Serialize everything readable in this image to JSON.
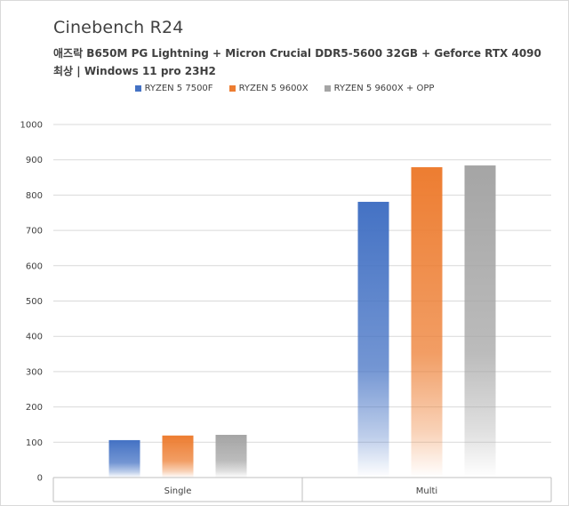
{
  "chart_data": {
    "type": "bar",
    "title": "Cinebench R24",
    "subtitle_lines": [
      "애즈락 B650M PG Lightning + Micron Crucial DDR5-5600 32GB + Geforce RTX 4090",
      "최상 | Windows 11 pro 23H2"
    ],
    "categories": [
      "Single",
      "Multi"
    ],
    "series": [
      {
        "name": "RYZEN 5 7500F",
        "color": "#4472c4",
        "values": [
          106,
          781
        ]
      },
      {
        "name": "RYZEN 5 9600X",
        "color": "#ed7d31",
        "values": [
          119,
          879
        ]
      },
      {
        "name": "RYZEN 5 9600X + OPP",
        "color": "#a5a5a5",
        "values": [
          121,
          884
        ]
      }
    ],
    "yticks": [
      "0",
      "100",
      "200",
      "300",
      "400",
      "500",
      "600",
      "700",
      "800",
      "900",
      "1000"
    ],
    "ylim": [
      0,
      1000
    ],
    "grid": true,
    "legend_position": "top-center"
  }
}
